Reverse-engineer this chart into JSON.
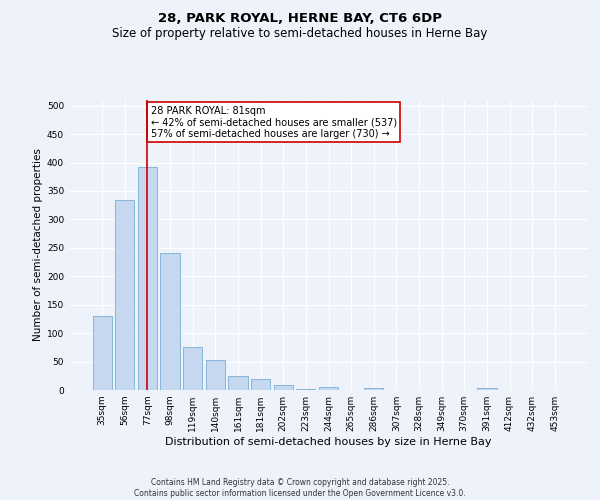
{
  "title_line1": "28, PARK ROYAL, HERNE BAY, CT6 6DP",
  "title_line2": "Size of property relative to semi-detached houses in Herne Bay",
  "xlabel": "Distribution of semi-detached houses by size in Herne Bay",
  "ylabel": "Number of semi-detached properties",
  "categories": [
    "35sqm",
    "56sqm",
    "77sqm",
    "98sqm",
    "119sqm",
    "140sqm",
    "161sqm",
    "181sqm",
    "202sqm",
    "223sqm",
    "244sqm",
    "265sqm",
    "286sqm",
    "307sqm",
    "328sqm",
    "349sqm",
    "370sqm",
    "391sqm",
    "412sqm",
    "432sqm",
    "453sqm"
  ],
  "values": [
    131,
    335,
    393,
    241,
    76,
    52,
    25,
    19,
    8,
    2,
    6,
    0,
    4,
    0,
    0,
    0,
    0,
    4,
    0,
    0,
    0
  ],
  "bar_color": "#c5d8f0",
  "bar_edge_color": "#7aafd4",
  "vline_x_index": 2,
  "vline_color": "#cc0000",
  "annotation_text": "28 PARK ROYAL: 81sqm\n← 42% of semi-detached houses are smaller (537)\n57% of semi-detached houses are larger (730) →",
  "annotation_box_facecolor": "#ffffff",
  "annotation_box_edgecolor": "#cc0000",
  "footer_text": "Contains HM Land Registry data © Crown copyright and database right 2025.\nContains public sector information licensed under the Open Government Licence v3.0.",
  "ylim": [
    0,
    510
  ],
  "yticks": [
    0,
    50,
    100,
    150,
    200,
    250,
    300,
    350,
    400,
    450,
    500
  ],
  "background_color": "#eef2fb",
  "plot_bg_color": "#eef2fb",
  "grid_color": "#ffffff",
  "title_fontsize": 9.5,
  "subtitle_fontsize": 8.5,
  "tick_fontsize": 6.5,
  "ylabel_fontsize": 7.5,
  "xlabel_fontsize": 8,
  "annotation_fontsize": 7,
  "footer_fontsize": 5.5
}
